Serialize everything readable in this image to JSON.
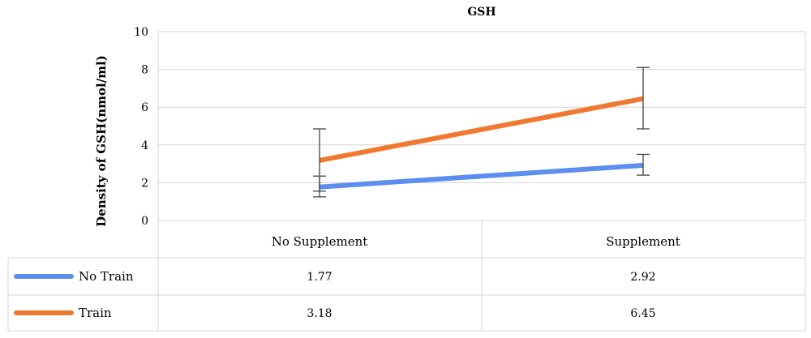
{
  "chart_data": {
    "type": "line",
    "title": "GSH",
    "xlabel": "",
    "ylabel": "Density of GSH(nmol/ml)",
    "ylim": [
      0,
      10
    ],
    "yticks": [
      0,
      2,
      4,
      6,
      8,
      10
    ],
    "categories": [
      "No Supplement",
      "Supplement"
    ],
    "grid": true,
    "legend": "data-table-below",
    "series": [
      {
        "name": "No Train",
        "color": "#5B8EF0",
        "values": [
          1.77,
          2.92
        ],
        "value_labels": [
          "1.77",
          "2.92"
        ],
        "error_low": [
          1.25,
          2.4
        ],
        "error_high": [
          2.35,
          3.5
        ]
      },
      {
        "name": "Train",
        "color": "#F07830",
        "values": [
          3.18,
          6.45
        ],
        "value_labels": [
          "3.18",
          "6.45"
        ],
        "error_low": [
          1.55,
          4.85
        ],
        "error_high": [
          4.85,
          8.1
        ]
      }
    ]
  }
}
